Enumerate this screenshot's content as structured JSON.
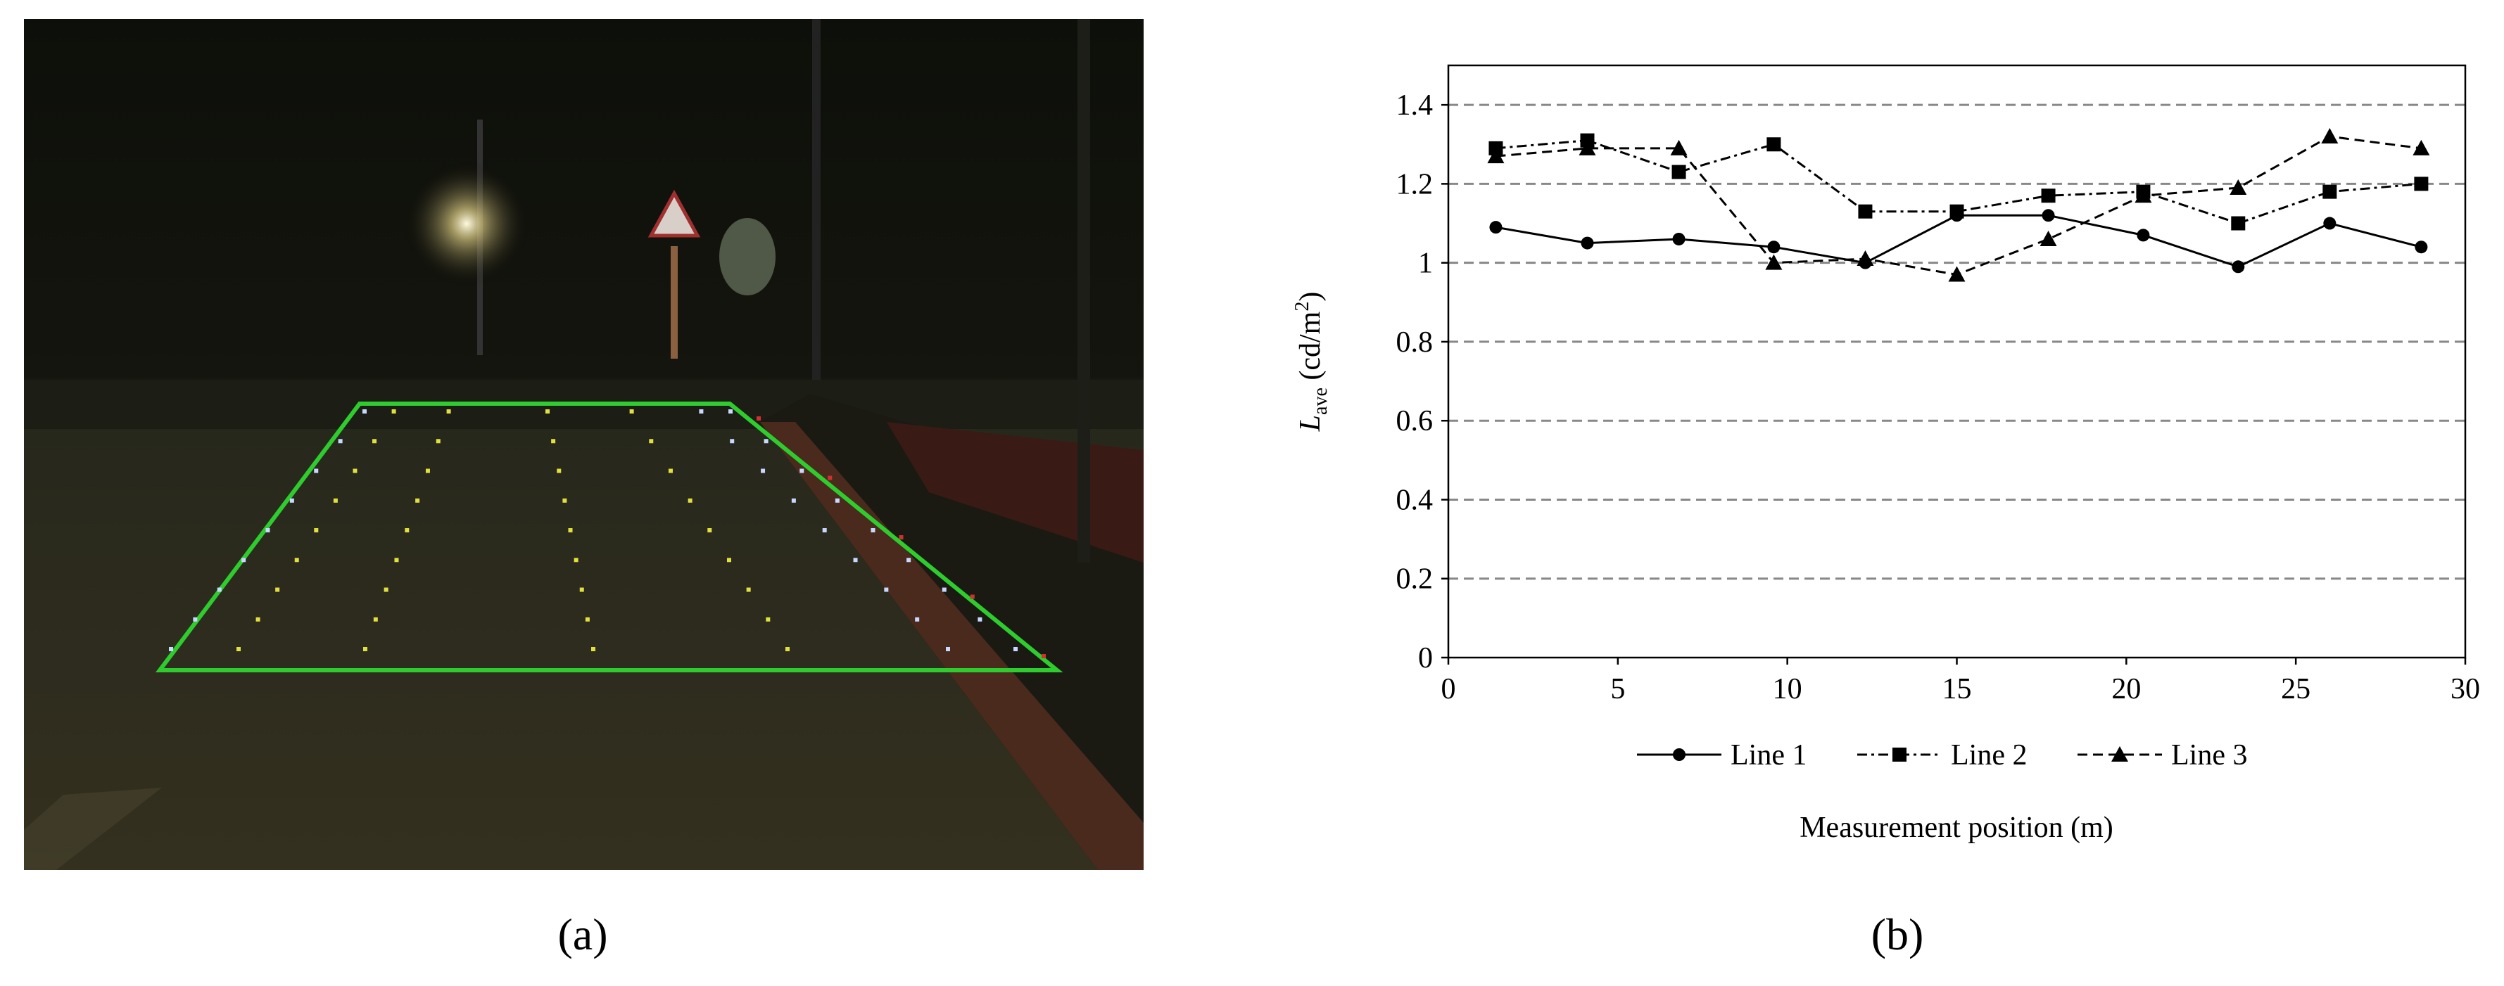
{
  "panel_labels": [
    "(a)",
    "(b)"
  ],
  "chart_data": {
    "type": "line",
    "xlabel": "Measurement position (m)",
    "ylabel": [
      "L",
      "ave",
      " (cd/m",
      "2",
      ")"
    ],
    "xlim": [
      0,
      30
    ],
    "xticks": [
      0,
      5,
      10,
      15,
      20,
      25,
      30
    ],
    "ylim": [
      0,
      1.5
    ],
    "yticks": [
      0,
      0.2,
      0.4,
      0.6,
      0.8,
      1,
      1.2,
      1.4
    ],
    "grid": true,
    "legend": "bottom",
    "x": [
      1.4,
      4.1,
      6.8,
      9.6,
      12.3,
      15,
      17.7,
      20.5,
      23.3,
      26,
      28.7
    ],
    "series": [
      {
        "name": "Line 1",
        "color": "#000000",
        "marker": "circle",
        "dash": "solid",
        "values": [
          1.09,
          1.05,
          1.06,
          1.04,
          1.0,
          1.12,
          1.12,
          1.07,
          0.99,
          1.1,
          1.04
        ]
      },
      {
        "name": "Line 2",
        "color": "#000000",
        "marker": "square",
        "dash": "dashdot",
        "values": [
          1.29,
          1.31,
          1.23,
          1.3,
          1.13,
          1.13,
          1.17,
          1.18,
          1.1,
          1.18,
          1.2
        ]
      },
      {
        "name": "Line 3",
        "color": "#000000",
        "marker": "triangle",
        "dash": "dashed",
        "values": [
          1.27,
          1.29,
          1.29,
          1.0,
          1.01,
          0.97,
          1.06,
          1.17,
          1.19,
          1.32,
          1.29
        ]
      }
    ]
  }
}
